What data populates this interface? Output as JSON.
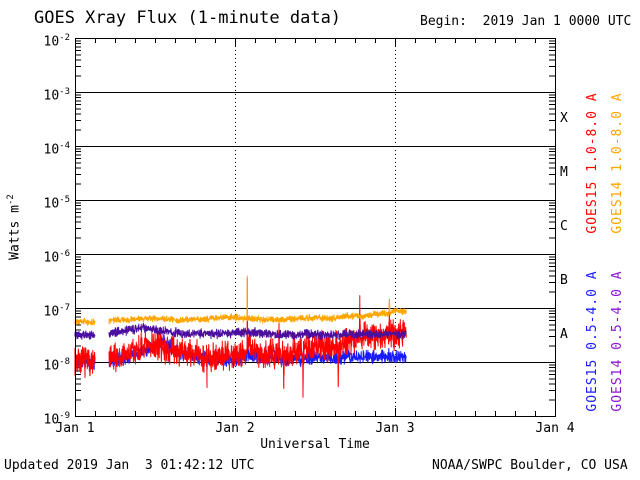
{
  "texts": {
    "begin": "Begin:  2019 Jan 1 0000 UTC",
    "updated": "Updated 2019 Jan  3 01:42:12 UTC",
    "credit": "NOAA/SWPC Boulder, CO USA"
  },
  "colors": {
    "background": "#ffffff",
    "axis": "#000000",
    "goes15_long": "#ff0000",
    "goes14_long": "#ffa500",
    "goes15_short": "#1a1aff",
    "goes14_short": "#4b0e9e",
    "label_goes14_short": "#8a15d0"
  },
  "chart_data": {
    "type": "line",
    "title": "GOES Xray Flux (1-minute data)",
    "xlabel": "Universal Time",
    "ylabel": "Watts m",
    "ylabel_sup": "-2",
    "x_ticklabels": [
      "Jan 1",
      "Jan 2",
      "Jan 3",
      "Jan 4"
    ],
    "x_minor_tick_hours": 3,
    "xlim_days": [
      0,
      3
    ],
    "y_tick_exponents": [
      -2,
      -3,
      -4,
      -5,
      -6,
      -7,
      -8,
      -9
    ],
    "ylim": [
      1e-09,
      0.01
    ],
    "y_scale": "log",
    "grid": "horizontal solid lines at each decade; dashed vertical lines at day boundaries Jan 2 and Jan 3",
    "flare_class_labels": [
      "X",
      "M",
      "C",
      "B",
      "A"
    ],
    "legend_position": "right, rotated 90deg",
    "right_labels": [
      {
        "text": "GOES15 1.0-8.0 A",
        "color": "#ff0000",
        "column": 0,
        "group": "top"
      },
      {
        "text": "GOES14 1.0-8.0 A",
        "color": "#ffa500",
        "column": 1,
        "group": "top"
      },
      {
        "text": "GOES15 0.5-4.0 A",
        "color": "#1a1aff",
        "column": 0,
        "group": "bottom"
      },
      {
        "text": "GOES14 0.5-4.0 A",
        "color": "#8a15d0",
        "column": 1,
        "group": "bottom"
      }
    ],
    "data_gap_days": [
      0.125,
      0.212
    ],
    "data_end_day": 2.07,
    "sample_step_days": 0.0013888888,
    "series": [
      {
        "id": "goes15-short",
        "name": "GOES15 0.5-4.0 A",
        "color": "#1a1aff",
        "jitter": 0.16,
        "seed": 11,
        "keypoints": [
          [
            0,
            1.1e-08
          ],
          [
            0.12,
            1e-08
          ],
          [
            0.215,
            1.05e-08
          ],
          [
            0.3,
            1.2e-08
          ],
          [
            0.4,
            1.6e-08
          ],
          [
            0.5,
            2e-08
          ],
          [
            0.55,
            2.4e-08
          ],
          [
            0.6,
            1.8e-08
          ],
          [
            0.7,
            1.3e-08
          ],
          [
            0.85,
            1.15e-08
          ],
          [
            1.0,
            1.1e-08
          ],
          [
            1.074,
            1.2e-08
          ],
          [
            1.077,
            3.5e-08
          ],
          [
            1.08,
            1.3e-08
          ],
          [
            1.3,
            1.15e-08
          ],
          [
            1.6,
            1.2e-08
          ],
          [
            1.9,
            1.25e-08
          ],
          [
            2.0,
            1.3e-08
          ],
          [
            2.07,
            1.25e-08
          ]
        ]
      },
      {
        "id": "goes15-long",
        "name": "GOES15 1.0-8.0 A",
        "color": "#ff0000",
        "jitter": 0.32,
        "seed": 7,
        "keypoints": [
          [
            0,
            1.1e-08
          ],
          [
            0.12,
            1e-08
          ],
          [
            0.215,
            1.1e-08
          ],
          [
            0.3,
            1.3e-08
          ],
          [
            0.4,
            1.7e-08
          ],
          [
            0.5,
            2.1e-08
          ],
          [
            0.55,
            1.9e-08
          ],
          [
            0.65,
            1.5e-08
          ],
          [
            0.75,
            1.4e-08
          ],
          [
            0.822,
            1.2e-08
          ],
          [
            0.825,
            5e-09
          ],
          [
            0.828,
            1.2e-08
          ],
          [
            0.9,
            1.3e-08
          ],
          [
            1.0,
            1.4e-08
          ],
          [
            1.05,
            1.5e-08
          ],
          [
            1.0755,
            1.5e-08
          ],
          [
            1.077,
            3.2e-07
          ],
          [
            1.0785,
            2.4e-08
          ],
          [
            1.12,
            1.6e-08
          ],
          [
            1.2,
            1.4e-08
          ],
          [
            1.272,
            1.5e-08
          ],
          [
            1.275,
            7e-08
          ],
          [
            1.278,
            1.6e-08
          ],
          [
            1.302,
            1.4e-08
          ],
          [
            1.305,
            3.5e-09
          ],
          [
            1.308,
            1.5e-08
          ],
          [
            1.422,
            1.6e-08
          ],
          [
            1.425,
            2.8e-09
          ],
          [
            1.428,
            1.6e-08
          ],
          [
            1.5,
            1.9e-08
          ],
          [
            1.6,
            2.1e-08
          ],
          [
            1.642,
            2e-08
          ],
          [
            1.645,
            4e-09
          ],
          [
            1.648,
            2e-08
          ],
          [
            1.7,
            2.6e-08
          ],
          [
            1.777,
            2.8e-08
          ],
          [
            1.78,
            1.15e-07
          ],
          [
            1.783,
            3e-08
          ],
          [
            1.85,
            3.2e-08
          ],
          [
            1.9,
            2.8e-08
          ],
          [
            1.962,
            3.2e-08
          ],
          [
            1.965,
            8.5e-08
          ],
          [
            1.968,
            3.4e-08
          ],
          [
            2.0,
            2.9e-08
          ],
          [
            2.04,
            4.2e-08
          ],
          [
            2.07,
            3.4e-08
          ]
        ]
      },
      {
        "id": "goes14-short",
        "name": "GOES14 0.5-4.0 A",
        "color": "#4b0e9e",
        "jitter": 0.1,
        "seed": 5,
        "keypoints": [
          [
            0,
            3.2e-08
          ],
          [
            0.12,
            3.2e-08
          ],
          [
            0.215,
            3.4e-08
          ],
          [
            0.35,
            4e-08
          ],
          [
            0.45,
            4.3e-08
          ],
          [
            0.55,
            3.7e-08
          ],
          [
            0.7,
            3.4e-08
          ],
          [
            0.9,
            3.3e-08
          ],
          [
            1.077,
            3.6e-08
          ],
          [
            1.3,
            3.2e-08
          ],
          [
            1.6,
            3.2e-08
          ],
          [
            1.9,
            3.3e-08
          ],
          [
            2.07,
            3.3e-08
          ]
        ]
      },
      {
        "id": "goes14-long",
        "name": "GOES14 1.0-8.0 A",
        "color": "#ffa500",
        "jitter": 0.07,
        "seed": 3,
        "keypoints": [
          [
            0,
            5.5e-08
          ],
          [
            0.12,
            5.5e-08
          ],
          [
            0.215,
            5.8e-08
          ],
          [
            0.35,
            6.2e-08
          ],
          [
            0.5,
            6.4e-08
          ],
          [
            0.65,
            6e-08
          ],
          [
            0.8,
            6.2e-08
          ],
          [
            0.95,
            6.8e-08
          ],
          [
            1.05,
            6.4e-08
          ],
          [
            1.0755,
            6.5e-08
          ],
          [
            1.077,
            3.5e-07
          ],
          [
            1.0785,
            6.5e-08
          ],
          [
            1.2,
            6e-08
          ],
          [
            1.35,
            6.2e-08
          ],
          [
            1.5,
            6.6e-08
          ],
          [
            1.6,
            6.4e-08
          ],
          [
            1.7,
            7.2e-08
          ],
          [
            1.8,
            7e-08
          ],
          [
            1.9,
            7.8e-08
          ],
          [
            1.962,
            8e-08
          ],
          [
            1.965,
            1.35e-07
          ],
          [
            1.968,
            8.2e-08
          ],
          [
            2.0,
            9e-08
          ],
          [
            2.05,
            8.5e-08
          ],
          [
            2.07,
            8.8e-08
          ]
        ]
      }
    ]
  }
}
